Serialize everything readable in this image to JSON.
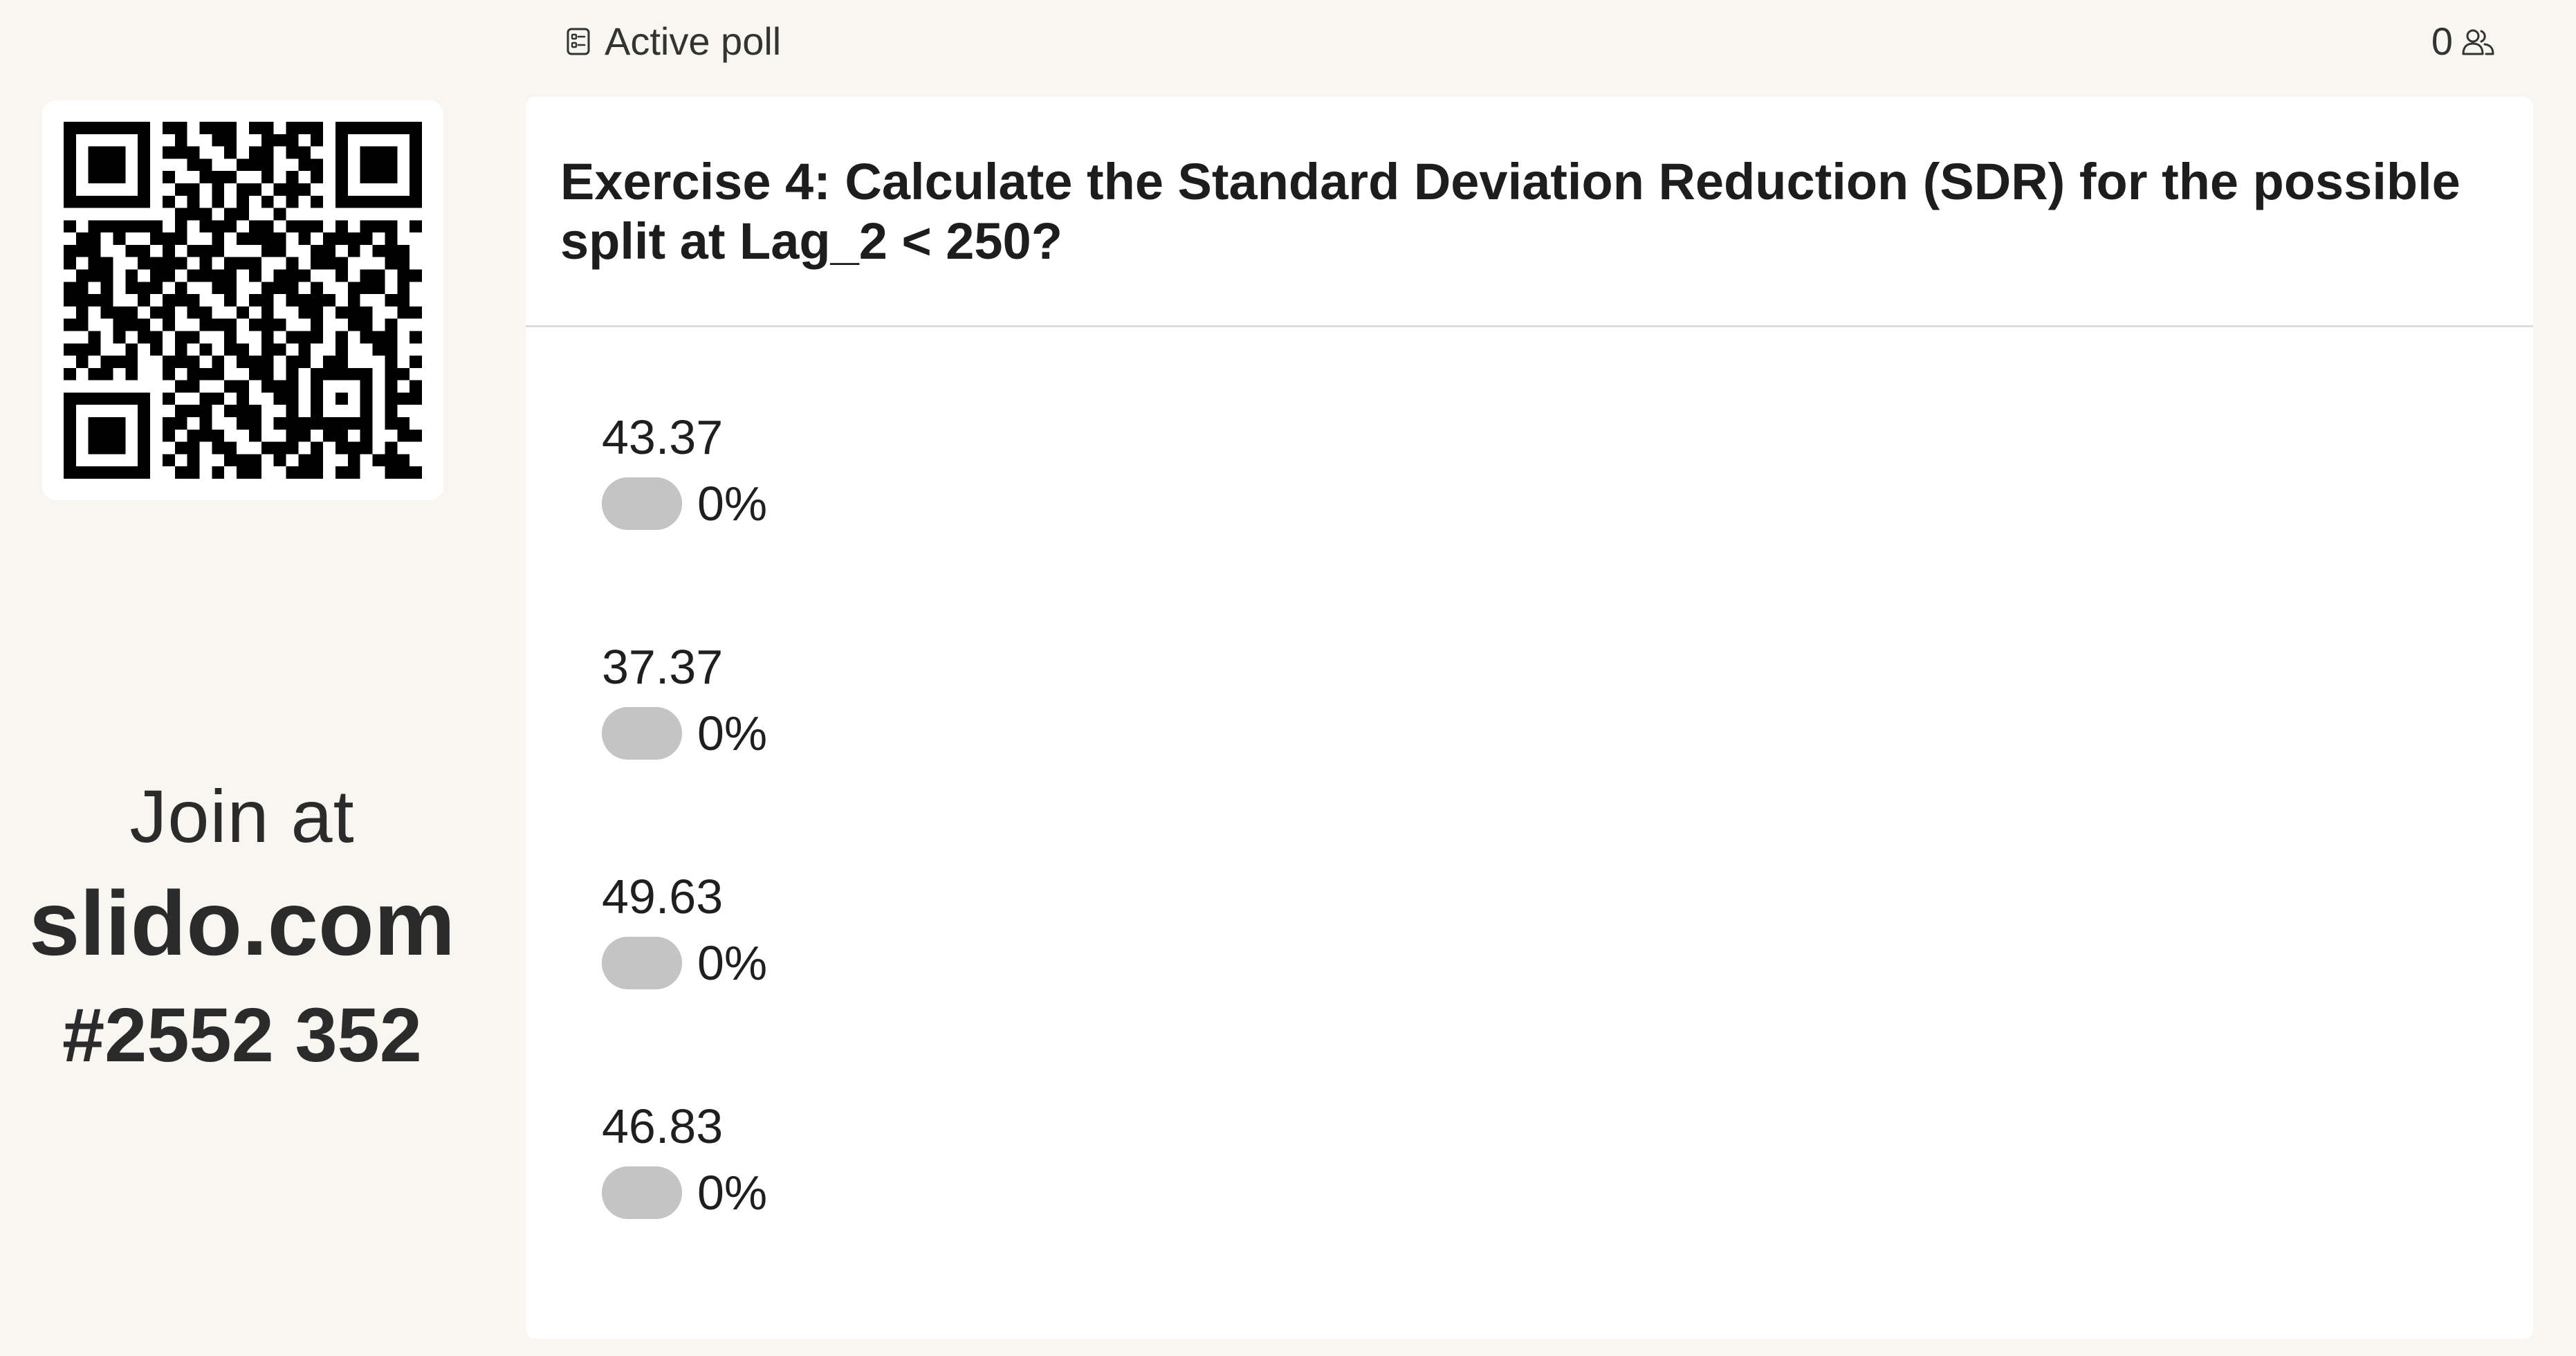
{
  "join": {
    "line1": "Join at",
    "domain": "slido.com",
    "code": "#2552 352"
  },
  "topbar": {
    "status_icon": "poll-list-icon",
    "status_label": "Active poll",
    "participants_count": "0",
    "participants_icon": "people-icon"
  },
  "poll": {
    "question": "Exercise 4: Calculate the Standard Deviation Reduction (SDR) for the possible split at Lag_2 < 250?",
    "options": [
      {
        "label": "43.37",
        "percent_label": "0%",
        "percent": 0
      },
      {
        "label": "37.37",
        "percent_label": "0%",
        "percent": 0
      },
      {
        "label": "49.63",
        "percent_label": "0%",
        "percent": 0
      },
      {
        "label": "46.83",
        "percent_label": "0%",
        "percent": 0
      }
    ]
  },
  "colors": {
    "background": "#f8f6f0",
    "card": "#ffffff",
    "bar": "#c4c4c4",
    "text": "#222222"
  }
}
